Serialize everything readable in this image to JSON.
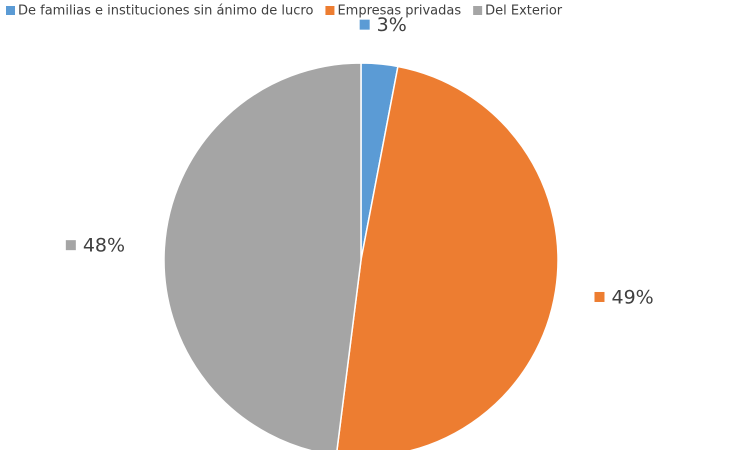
{
  "chart_data": {
    "type": "pie",
    "categories": [
      "De familias e instituciones sin ánimo de lucro",
      "Empresas privadas",
      "Del Exterior"
    ],
    "values": [
      3,
      49,
      48
    ],
    "value_labels": [
      "3%",
      "49%",
      "48%"
    ],
    "colors": [
      "#5b9bd5",
      "#ed7d31",
      "#a5a5a5"
    ],
    "legend": "top"
  }
}
